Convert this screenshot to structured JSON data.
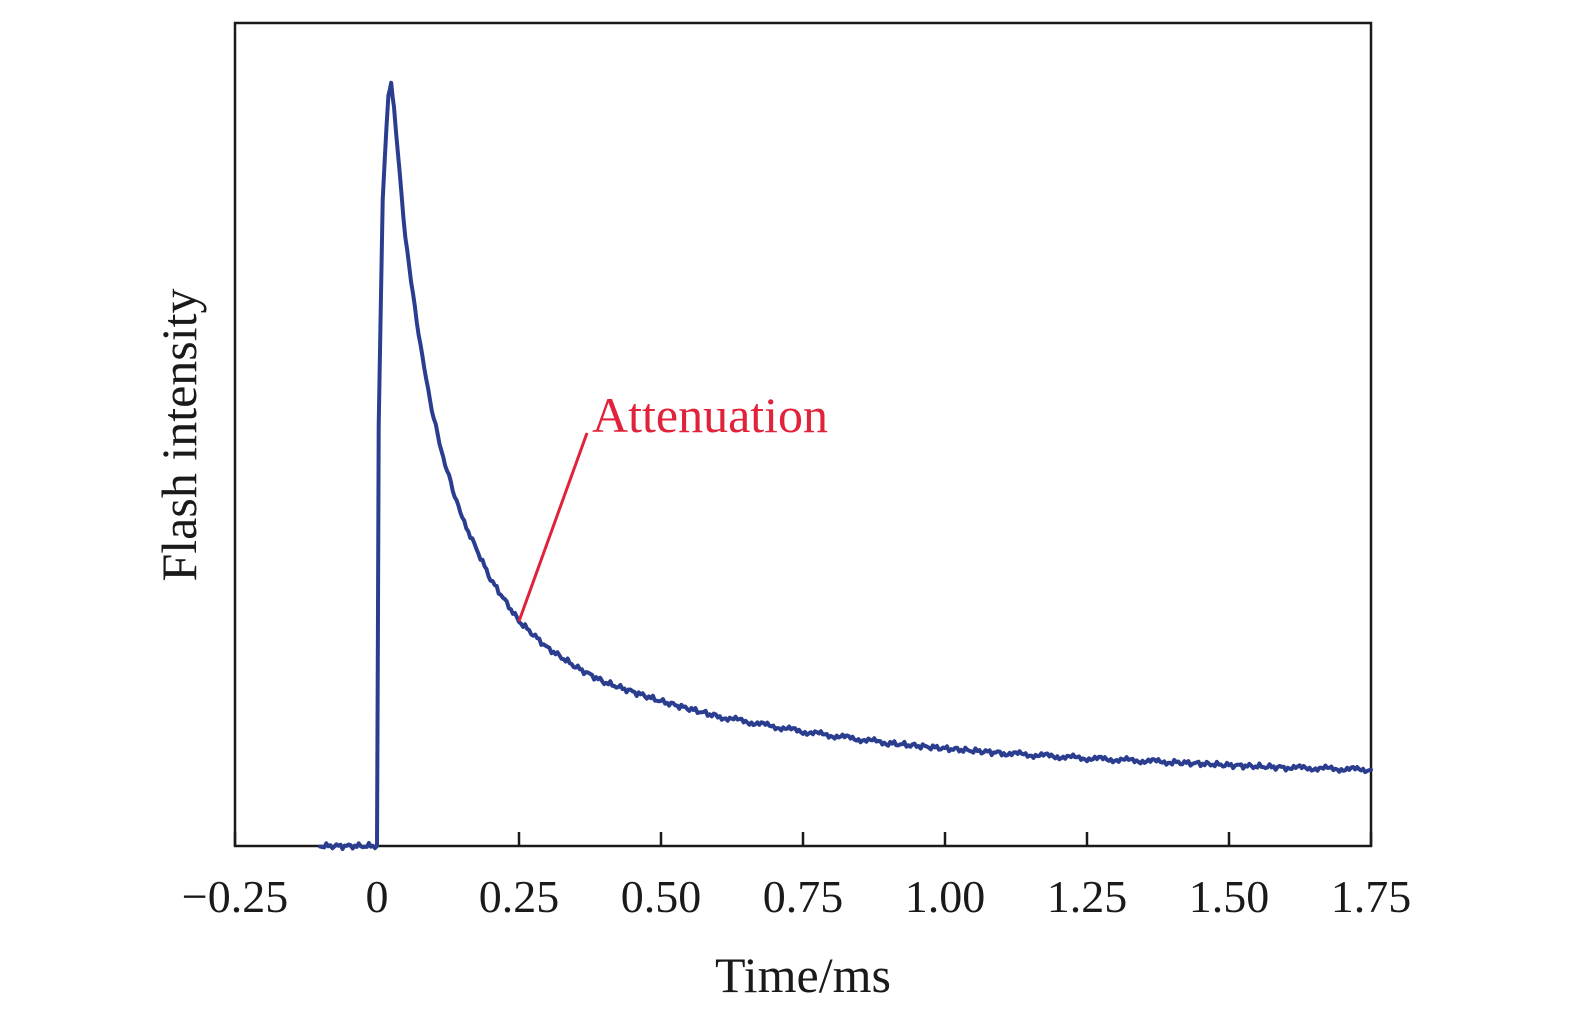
{
  "chart_data": {
    "type": "line",
    "title": "",
    "xlabel": "Time/ms",
    "ylabel": "Flash intensity",
    "xlim": [
      -0.25,
      1.75
    ],
    "ylim": [
      0,
      1.08
    ],
    "x_ticks": [
      -0.25,
      0,
      0.25,
      0.5,
      0.75,
      1.0,
      1.25,
      1.5,
      1.75
    ],
    "x_tick_labels": [
      "−0.25",
      "0",
      "0.25",
      "0.50",
      "0.75",
      "1.00",
      "1.25",
      "1.50",
      "1.75"
    ],
    "y_tick_labels": [],
    "grid": false,
    "legend": "none",
    "series": [
      {
        "color": "#2b3d8f",
        "x": [
          -0.1,
          0.0,
          0.003,
          0.01,
          0.02,
          0.025,
          0.03,
          0.04,
          0.05,
          0.06,
          0.08,
          0.1,
          0.12,
          0.15,
          0.2,
          0.25,
          0.3,
          0.35,
          0.4,
          0.5,
          0.6,
          0.75,
          0.9,
          1.0,
          1.1,
          1.25,
          1.4,
          1.5,
          1.6,
          1.75
        ],
        "y": [
          0.0,
          0.0,
          0.55,
          0.85,
          0.985,
          1.0,
          0.97,
          0.88,
          0.8,
          0.74,
          0.64,
          0.56,
          0.5,
          0.43,
          0.35,
          0.295,
          0.26,
          0.235,
          0.215,
          0.19,
          0.17,
          0.15,
          0.135,
          0.128,
          0.122,
          0.115,
          0.11,
          0.106,
          0.103,
          0.1
        ]
      }
    ],
    "annotations": [
      {
        "text": "Attenuation",
        "color": "#e0223a",
        "x": 0.25,
        "y": 0.295
      }
    ]
  }
}
